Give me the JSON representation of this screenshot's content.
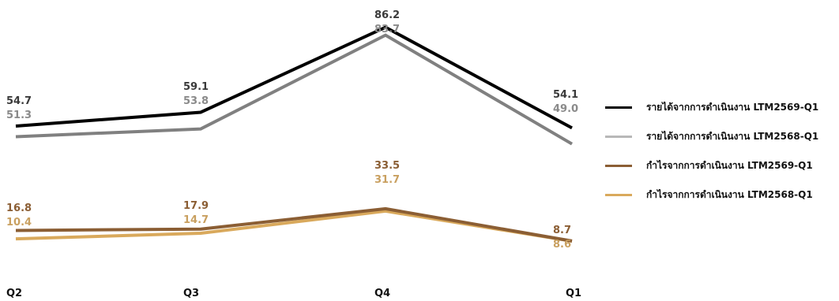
{
  "chart_data": {
    "type": "line",
    "categories": [
      "Q2",
      "Q3",
      "Q4",
      "Q1"
    ],
    "series": [
      {
        "name": "รายได้จากการดำเนินงาน LTM2569-Q1",
        "values": [
          54.7,
          59.1,
          86.2,
          54.1
        ],
        "color": "#000000"
      },
      {
        "name": "รายได้จากการดำเนินงาน LTM2568-Q1",
        "values": [
          51.3,
          53.8,
          83.7,
          49.0
        ],
        "color": "#808080"
      },
      {
        "name": "กำไรจากการดำเนินงาน LTM2569-Q1",
        "values": [
          16.8,
          17.9,
          33.5,
          8.7
        ],
        "color": "#8b5e34"
      },
      {
        "name": "กำไรจากการดำเนินงาน LTM2568-Q1",
        "values": [
          10.4,
          14.7,
          31.7,
          8.6
        ],
        "color": "#d9a95c"
      }
    ],
    "label_colors": [
      "#3a3a3a",
      "#8a8a8a",
      "#8b5e34",
      "#c9a060"
    ],
    "legend_colors": [
      "#000000",
      "#b8b8b8",
      "#8b5e34",
      "#d9a95c"
    ],
    "grid": false,
    "legend_position": "right"
  }
}
